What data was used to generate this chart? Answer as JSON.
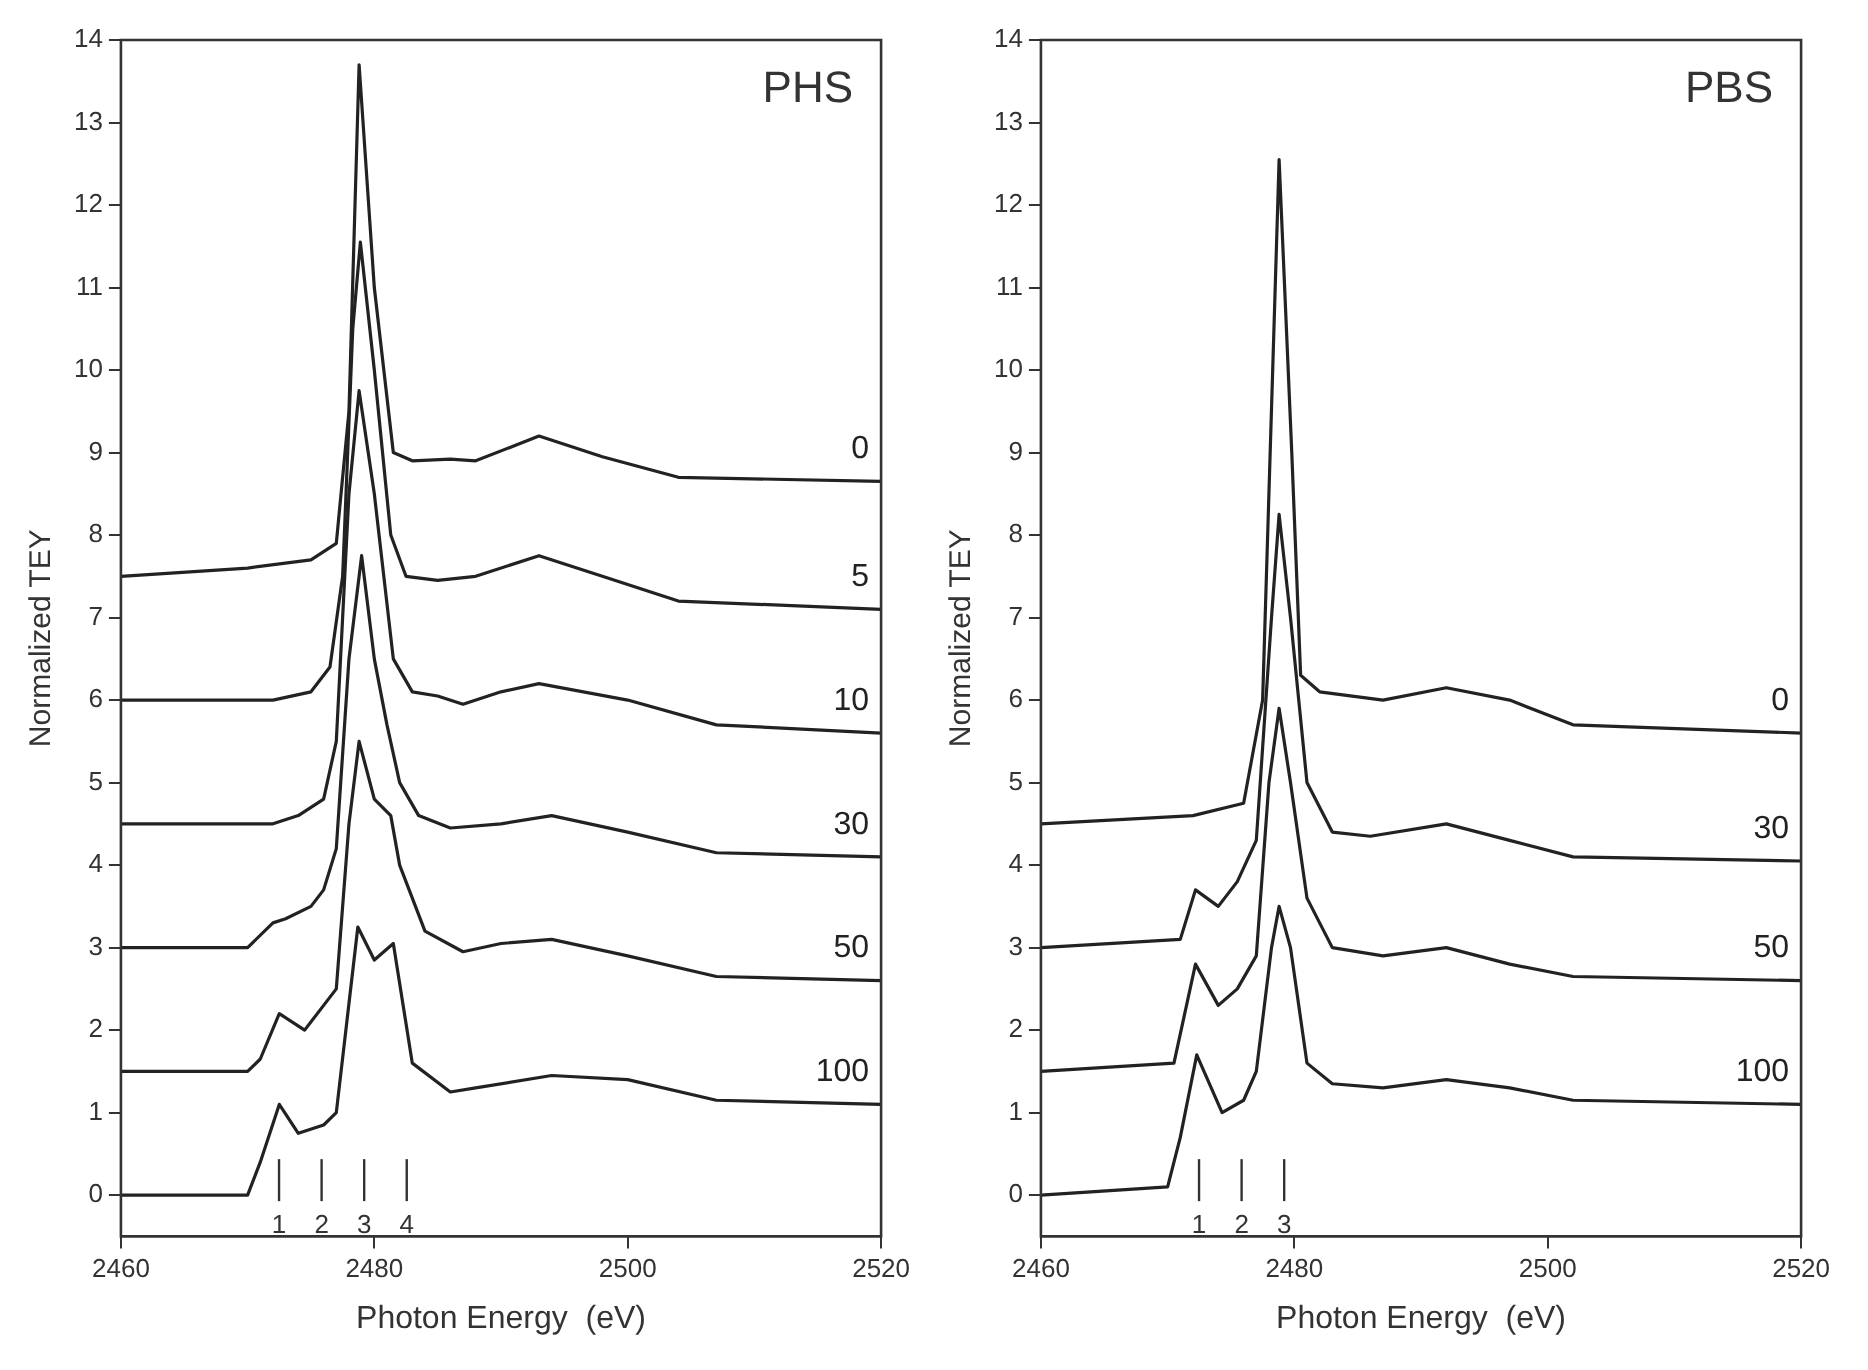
{
  "chart_data": [
    {
      "type": "line",
      "title": "PHS",
      "xlabel": "Photon Energy  (eV)",
      "ylabel": "Normalized TEY",
      "xlim": [
        2460,
        2520
      ],
      "xticks": [
        2460,
        2480,
        2500,
        2520
      ],
      "ylim": [
        -0.5,
        14
      ],
      "yticks": [
        0,
        1,
        2,
        3,
        4,
        5,
        6,
        7,
        8,
        9,
        10,
        11,
        12,
        13,
        14
      ],
      "grid": false,
      "legend": false,
      "marker": "none",
      "line_style": "solid",
      "annotations": [
        "1",
        "2",
        "3",
        "4"
      ],
      "series": [
        {
          "name": "0",
          "color": "#222222",
          "x": [
            2460,
            2470,
            2475,
            2477,
            2478,
            2478.8,
            2480,
            2481.5,
            2483,
            2486,
            2488,
            2493,
            2498,
            2504,
            2520
          ],
          "values": [
            7.5,
            7.6,
            7.7,
            7.9,
            9.5,
            13.7,
            11,
            9,
            8.9,
            8.92,
            8.9,
            9.2,
            8.95,
            8.7,
            8.65
          ]
        },
        {
          "name": "5",
          "color": "#222222",
          "x": [
            2460,
            2472,
            2475,
            2476.5,
            2477.5,
            2478.3,
            2478.9,
            2480,
            2481.3,
            2482.5,
            2485,
            2488,
            2493,
            2498,
            2504,
            2520
          ],
          "values": [
            6,
            6,
            6.1,
            6.4,
            7.5,
            10.5,
            11.55,
            10,
            8,
            7.5,
            7.45,
            7.5,
            7.75,
            7.5,
            7.2,
            7.1
          ]
        },
        {
          "name": "10",
          "color": "#222222",
          "x": [
            2460,
            2472,
            2474,
            2476,
            2477,
            2478,
            2478.8,
            2480,
            2481.5,
            2483,
            2485,
            2487,
            2490,
            2493,
            2500,
            2507,
            2520
          ],
          "values": [
            4.5,
            4.5,
            4.6,
            4.8,
            5.5,
            8.5,
            9.75,
            8.5,
            6.5,
            6.1,
            6.05,
            5.95,
            6.1,
            6.2,
            6,
            5.7,
            5.6
          ]
        },
        {
          "name": "30",
          "color": "#222222",
          "x": [
            2460,
            2470,
            2472,
            2473,
            2475,
            2476,
            2477,
            2478,
            2479,
            2480,
            2481,
            2482,
            2483.5,
            2486,
            2490,
            2494,
            2500,
            2507,
            2520
          ],
          "values": [
            3,
            3,
            3.3,
            3.35,
            3.5,
            3.7,
            4.2,
            6.5,
            7.75,
            6.5,
            5.7,
            5,
            4.6,
            4.45,
            4.5,
            4.6,
            4.4,
            4.15,
            4.1
          ]
        },
        {
          "name": "50",
          "color": "#222222",
          "x": [
            2460,
            2470,
            2471,
            2472.5,
            2474.5,
            2476,
            2477,
            2478,
            2478.8,
            2480,
            2481.3,
            2482,
            2484,
            2487,
            2490,
            2494,
            2500,
            2507,
            2520
          ],
          "values": [
            1.5,
            1.5,
            1.65,
            2.2,
            2,
            2.3,
            2.5,
            4.5,
            5.5,
            4.8,
            4.6,
            4,
            3.2,
            2.95,
            3.05,
            3.1,
            2.9,
            2.65,
            2.6
          ]
        },
        {
          "name": "100",
          "color": "#222222",
          "x": [
            2460,
            2470,
            2471,
            2472.5,
            2474,
            2476,
            2477,
            2478.7,
            2480,
            2481.5,
            2483,
            2486,
            2488,
            2494,
            2500,
            2507,
            2520
          ],
          "values": [
            0,
            0,
            0.4,
            1.1,
            0.75,
            0.85,
            1,
            3.25,
            2.85,
            3.05,
            1.6,
            1.25,
            1.3,
            1.45,
            1.4,
            1.15,
            1.1
          ]
        }
      ]
    },
    {
      "type": "line",
      "title": "PBS",
      "xlabel": "Photon Energy  (eV)",
      "ylabel": "Normalized TEY",
      "xlim": [
        2460,
        2520
      ],
      "xticks": [
        2460,
        2480,
        2500,
        2520
      ],
      "ylim": [
        -0.5,
        14
      ],
      "yticks": [
        0,
        1,
        2,
        3,
        4,
        5,
        6,
        7,
        8,
        9,
        10,
        11,
        12,
        13,
        14
      ],
      "grid": false,
      "legend": false,
      "marker": "none",
      "line_style": "solid",
      "annotations": [
        "1",
        "2",
        "3"
      ],
      "series": [
        {
          "name": "0",
          "color": "#222222",
          "x": [
            2460,
            2472,
            2476,
            2477.5,
            2478.8,
            2479.8,
            2480.5,
            2482,
            2487,
            2492,
            2497,
            2502,
            2520
          ],
          "values": [
            4.5,
            4.6,
            4.75,
            6,
            12.55,
            9,
            6.3,
            6.1,
            6,
            6.15,
            6,
            5.7,
            5.6
          ]
        },
        {
          "name": "30",
          "color": "#222222",
          "x": [
            2460,
            2471,
            2472.2,
            2474,
            2475.5,
            2477,
            2478.2,
            2478.8,
            2479.7,
            2481,
            2483,
            2486,
            2492,
            2497,
            2502,
            2520
          ],
          "values": [
            3,
            3.1,
            3.7,
            3.5,
            3.8,
            4.3,
            7,
            8.25,
            7,
            5,
            4.4,
            4.35,
            4.5,
            4.3,
            4.1,
            4.05
          ]
        },
        {
          "name": "50",
          "color": "#222222",
          "x": [
            2460,
            2470.5,
            2472.2,
            2474,
            2475.5,
            2477,
            2478,
            2478.8,
            2479.7,
            2481,
            2483,
            2487,
            2492,
            2497,
            2502,
            2520
          ],
          "values": [
            1.5,
            1.6,
            2.8,
            2.3,
            2.5,
            2.9,
            5,
            5.9,
            5,
            3.6,
            3,
            2.9,
            3,
            2.8,
            2.65,
            2.6
          ]
        },
        {
          "name": "100",
          "color": "#222222",
          "x": [
            2460,
            2470,
            2471,
            2472.3,
            2474.3,
            2476,
            2477,
            2478.2,
            2478.8,
            2479.7,
            2481,
            2483,
            2487,
            2492,
            2497,
            2502,
            2520
          ],
          "values": [
            0,
            0.1,
            0.7,
            1.7,
            1,
            1.15,
            1.5,
            3,
            3.5,
            3,
            1.6,
            1.35,
            1.3,
            1.4,
            1.3,
            1.15,
            1.1
          ]
        }
      ]
    }
  ]
}
